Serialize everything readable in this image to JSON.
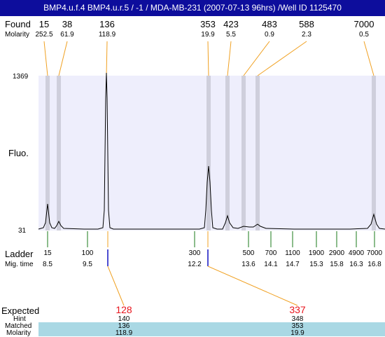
{
  "title": "BMP4.u.f.4  BMP4.u.r.5 / -1 / MDA-MB-231 (2007-07-13 96hrs) /Well ID 1125470",
  "found_label": "Found",
  "molarity_label": "Molarity",
  "found": [
    {
      "size": "15",
      "molarity": "252.5"
    },
    {
      "size": "38",
      "molarity": "61.9"
    },
    {
      "size": "136",
      "molarity": "118.9"
    },
    {
      "size": "353",
      "molarity": "19.9"
    },
    {
      "size": "423",
      "molarity": "5.5"
    },
    {
      "size": "483",
      "molarity": "0.9"
    },
    {
      "size": "588",
      "molarity": "2.3"
    },
    {
      "size": "7000",
      "molarity": "0.5"
    }
  ],
  "y_axis": {
    "label": "Fluo.",
    "max": "1369",
    "min": "31"
  },
  "ladder_label": "Ladder",
  "migtime_label": "Mig. time",
  "ladder": [
    {
      "size": "15",
      "time": "8.5"
    },
    {
      "size": "100",
      "time": "9.5"
    },
    {
      "size": "300",
      "time": "12.2"
    },
    {
      "size": "500",
      "time": "13.6"
    },
    {
      "size": "700",
      "time": "14.1"
    },
    {
      "size": "1100",
      "time": "14.7"
    },
    {
      "size": "1900",
      "time": "15.3"
    },
    {
      "size": "2900",
      "time": "15.8"
    },
    {
      "size": "4900",
      "time": "16.3"
    },
    {
      "size": "7000",
      "time": "16.8"
    }
  ],
  "expected_label": "Expected",
  "hint_label": "Hint",
  "matched_label": "Matched",
  "molarity2_label": "Molarity",
  "expected": [
    {
      "size": "128",
      "hint": "140",
      "matched": "136",
      "molarity": "118.9"
    },
    {
      "size": "337",
      "hint": "348",
      "matched": "353",
      "molarity": "19.9"
    }
  ],
  "colors": {
    "title_bg": "#0d0d9c",
    "plot_bg": "#eeeefc",
    "peak_band": "#cfcfdc",
    "found_line": "#f0a020",
    "ladder_tick": "#1a7a1a",
    "expected_tick": "#1010c0",
    "expected_text": "#e8141c",
    "band": "#a9d8e4"
  }
}
